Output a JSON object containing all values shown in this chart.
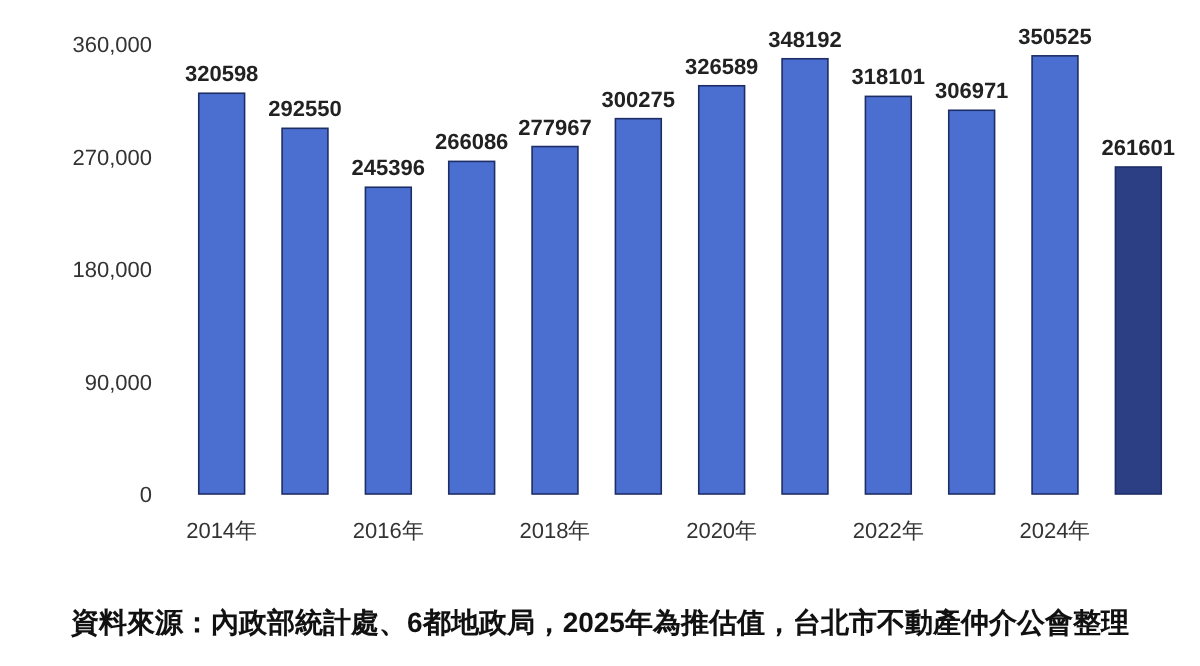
{
  "chart_data": {
    "type": "bar",
    "categories": [
      "2014年",
      null,
      "2016年",
      null,
      "2018年",
      null,
      "2020年",
      null,
      "2022年",
      null,
      "2024年",
      null
    ],
    "values": [
      320598,
      292550,
      245396,
      266086,
      277967,
      300275,
      326589,
      348192,
      318101,
      306971,
      350525,
      261601
    ],
    "colors": [
      "#4a6fd0",
      "#4a6fd0",
      "#4a6fd0",
      "#4a6fd0",
      "#4a6fd0",
      "#4a6fd0",
      "#4a6fd0",
      "#4a6fd0",
      "#4a6fd0",
      "#4a6fd0",
      "#4a6fd0",
      "#2c3f85"
    ],
    "ylim": [
      0,
      360000
    ],
    "yticks": [
      0,
      {
        "value": 90000,
        "label": "90,000"
      },
      {
        "value": 180000,
        "label": "180,000"
      },
      {
        "value": 270000,
        "label": "270,000"
      },
      {
        "value": 360000,
        "label": "360,000"
      }
    ],
    "data_labels": true,
    "grid": false,
    "annotations": [
      "資料來源：內政部統計處、6都地政局，2025年為推估值，台北市不動產仲介公會整理"
    ]
  }
}
